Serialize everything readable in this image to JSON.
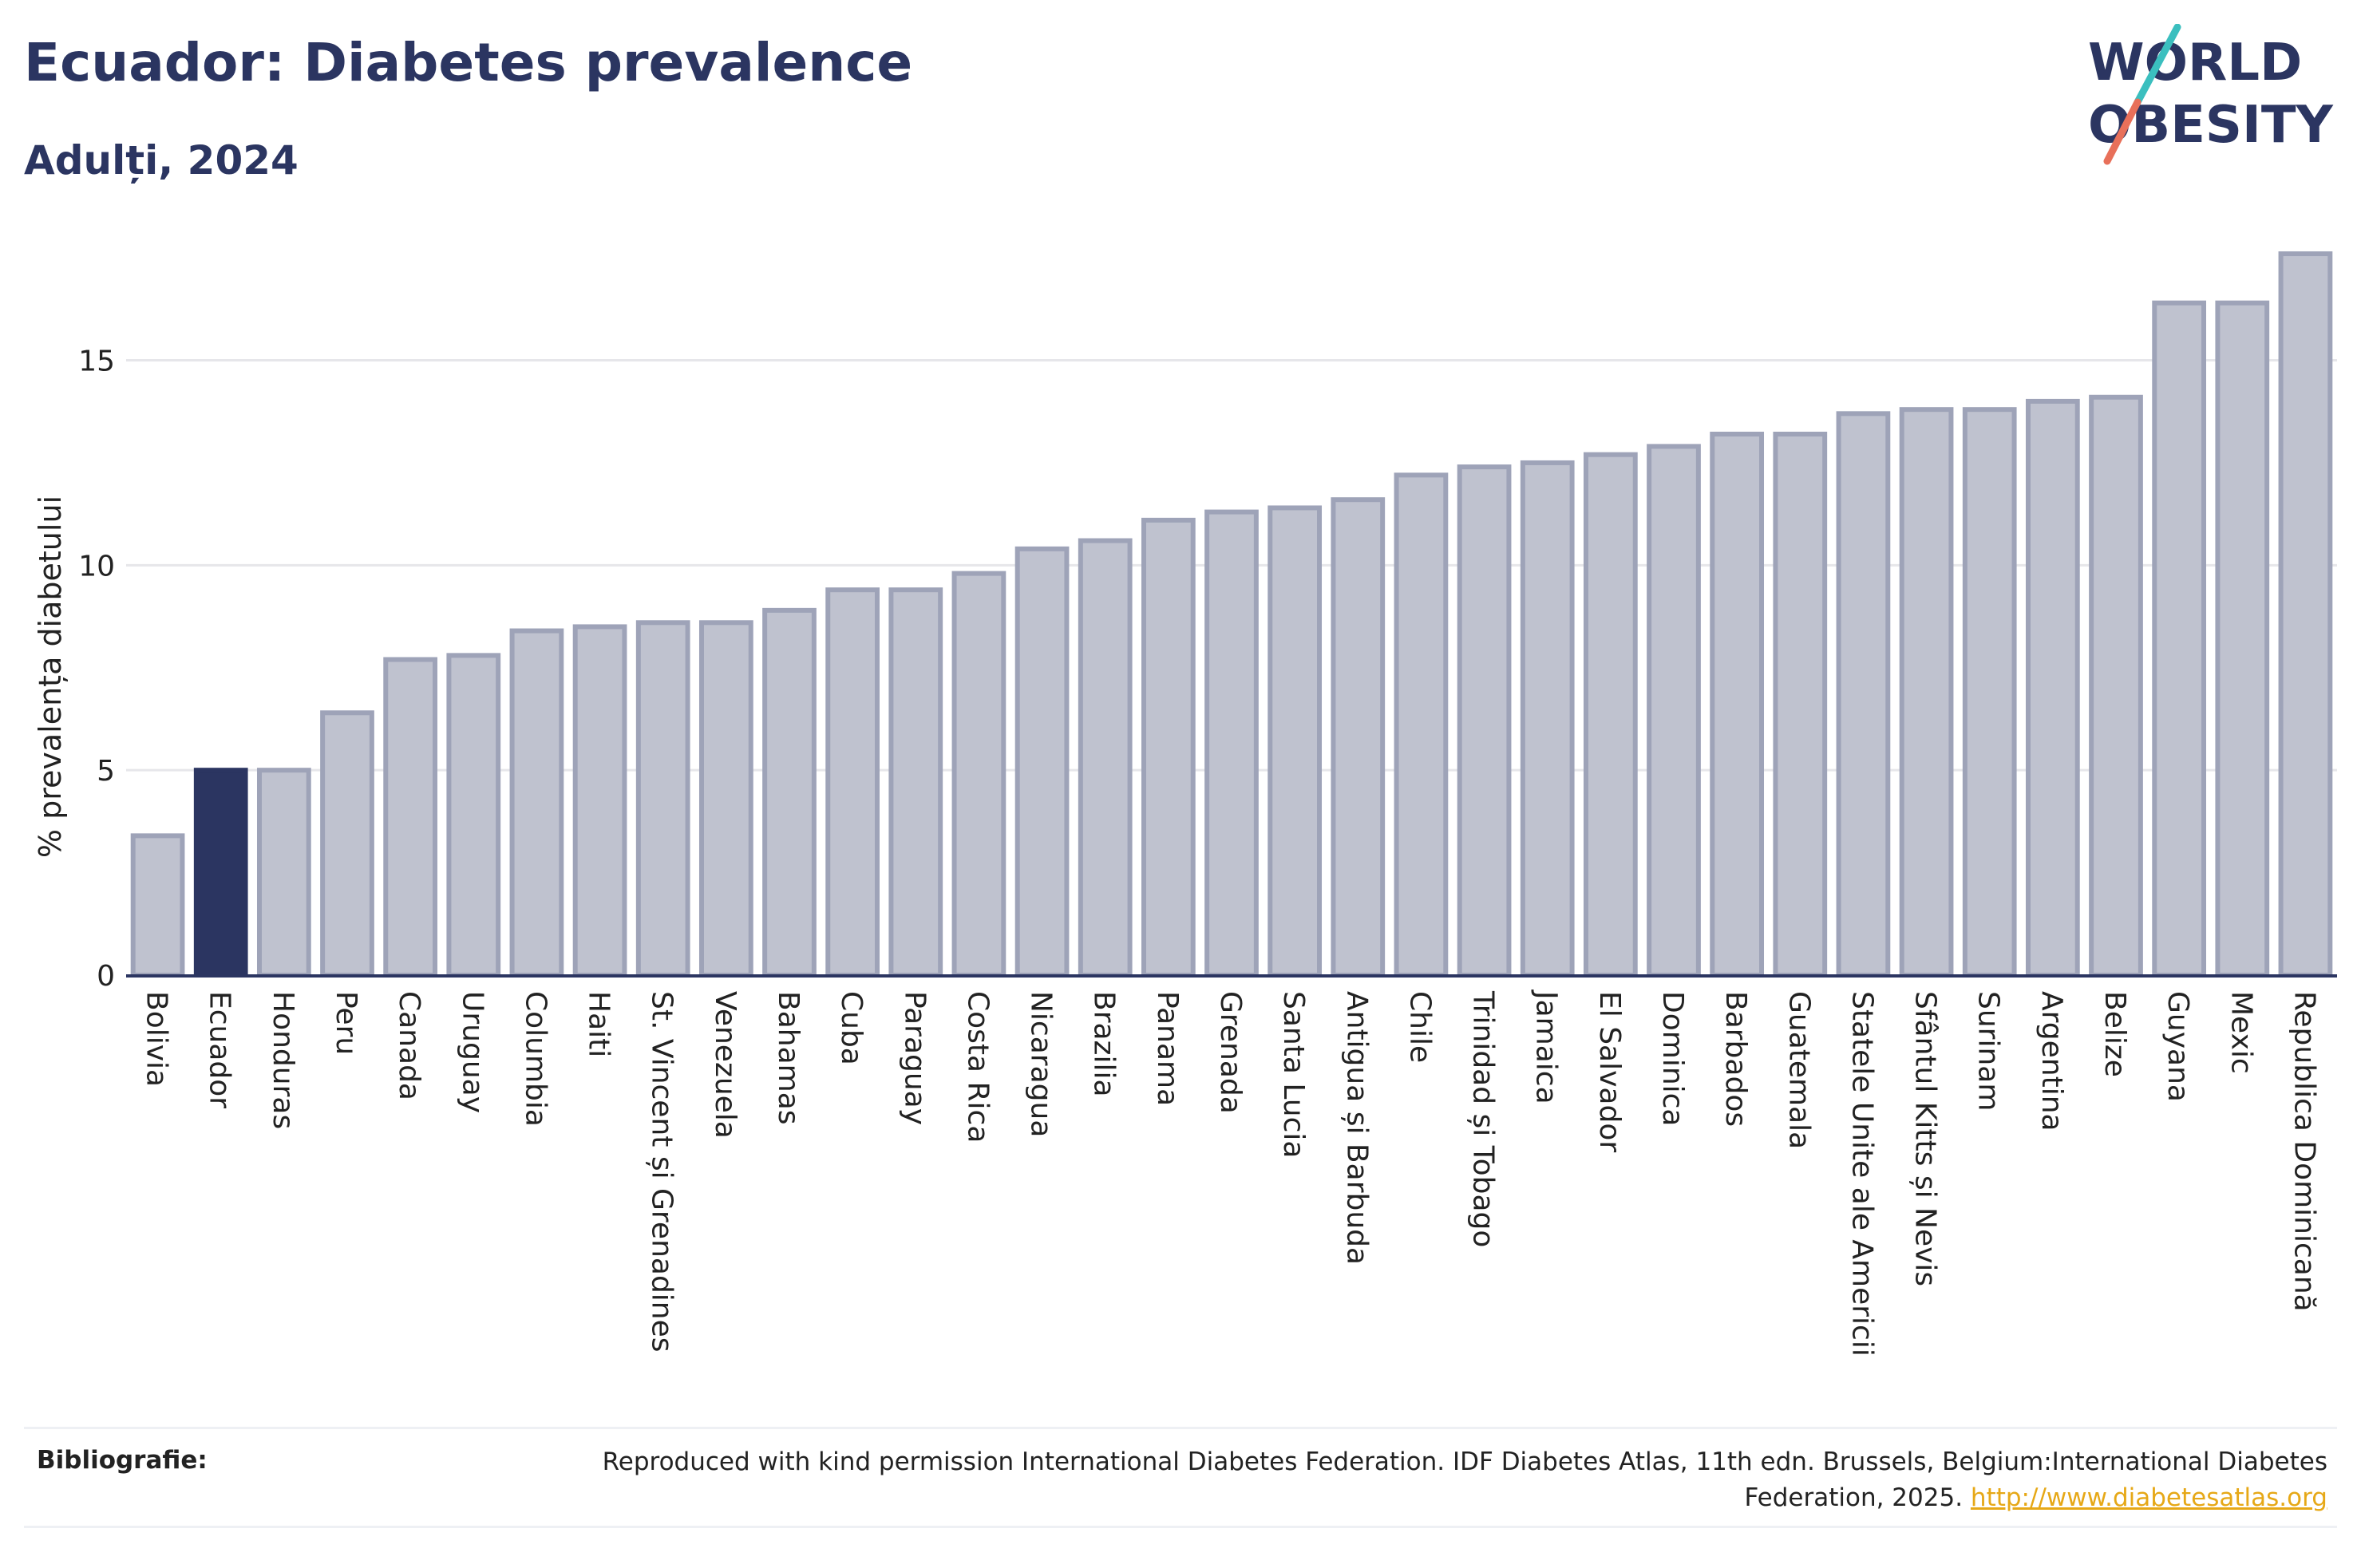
{
  "header": {
    "title": "Ecuador: Diabetes prevalence",
    "subtitle": "Adulți, 2024"
  },
  "logo": {
    "line1": "WORLD",
    "line2": "OBESITY",
    "colors": {
      "text": "#2b3561",
      "slash_top": "#3bbfbf",
      "slash_bottom": "#e8705a"
    }
  },
  "colors": {
    "bar_fill": "#bfc2cf",
    "bar_stroke": "#9ea3b8",
    "highlight_fill": "#2b3561",
    "grid": "#e6e6ea",
    "axis": "#2b3561"
  },
  "chart_data": {
    "type": "bar",
    "ylabel": "% prevalența diabetului",
    "xlabel": "",
    "ylim": [
      0,
      17.6
    ],
    "yticks": [
      0,
      5,
      10,
      15
    ],
    "grid": true,
    "highlight": "Ecuador",
    "categories": [
      "Bolivia",
      "Ecuador",
      "Honduras",
      "Peru",
      "Canada",
      "Uruguay",
      "Columbia",
      "Haiti",
      "St. Vincent și Grenadines",
      "Venezuela",
      "Bahamas",
      "Cuba",
      "Paraguay",
      "Costa Rica",
      "Nicaragua",
      "Brazilia",
      "Panama",
      "Grenada",
      "Santa Lucia",
      "Antigua și Barbuda",
      "Chile",
      "Trinidad și Tobago",
      "Jamaica",
      "El Salvador",
      "Dominica",
      "Barbados",
      "Guatemala",
      "Statele Unite ale Americii",
      "Sfântul Kitts și Nevis",
      "Surinam",
      "Argentina",
      "Belize",
      "Guyana",
      "Mexic",
      "Republica Dominicană"
    ],
    "values": [
      3.4,
      5.0,
      5.0,
      6.4,
      7.7,
      7.8,
      8.4,
      8.5,
      8.6,
      8.6,
      8.9,
      9.4,
      9.4,
      9.8,
      10.4,
      10.6,
      11.1,
      11.3,
      11.4,
      11.6,
      12.2,
      12.4,
      12.5,
      12.7,
      12.9,
      13.2,
      13.2,
      13.7,
      13.8,
      13.8,
      14.0,
      14.1,
      16.4,
      16.4,
      17.6
    ]
  },
  "footer": {
    "label": "Bibliografie:",
    "text": "Reproduced with kind permission International Diabetes Federation. IDF Diabetes Atlas, 11th edn. Brussels, Belgium:International Diabetes Federation, 2025.",
    "link": "http://www.diabetesatlas.org"
  }
}
